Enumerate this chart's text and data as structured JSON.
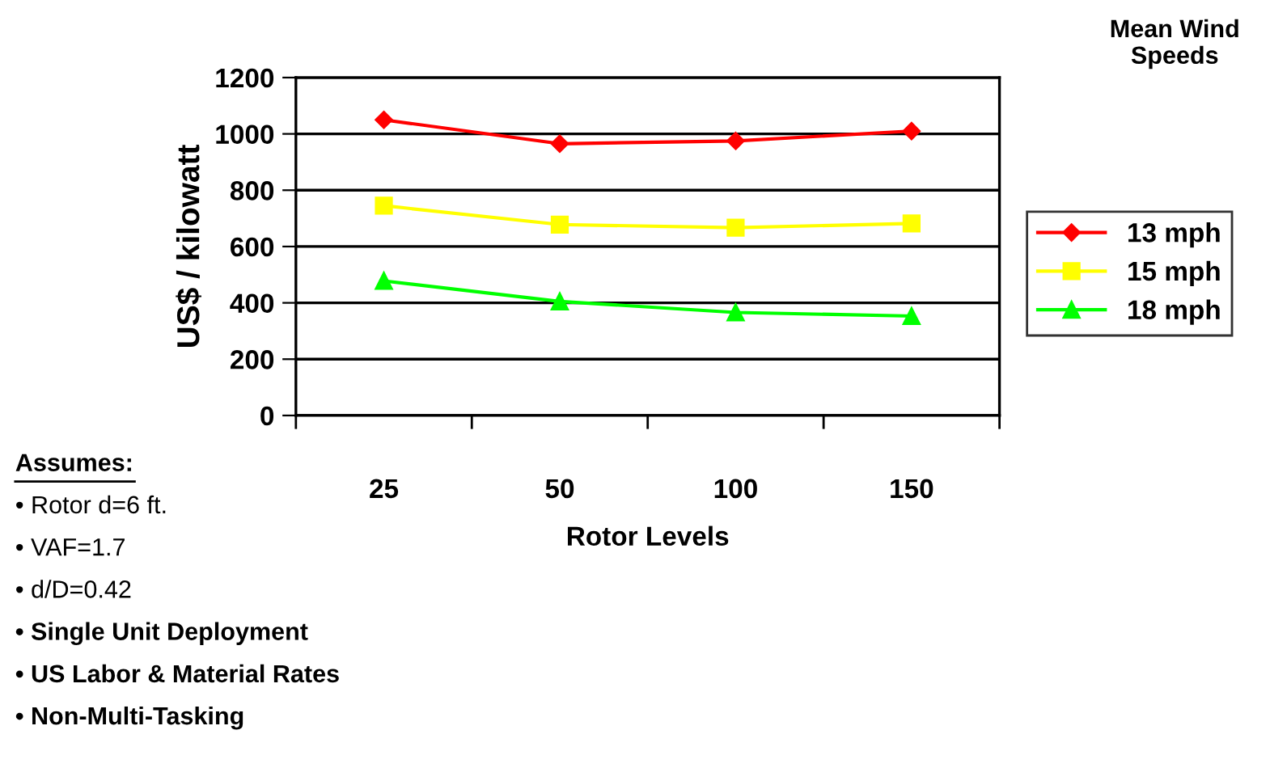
{
  "chart_data": {
    "type": "line",
    "categories": [
      "25",
      "50",
      "100",
      "150"
    ],
    "xlabel": "Rotor Levels",
    "ylabel": "US$ / kilowatt",
    "legend_title": "Mean Wind\nSpeeds",
    "ylim": [
      0,
      1200
    ],
    "yticks": [
      0,
      200,
      400,
      600,
      800,
      1000,
      1200
    ],
    "grid": "y",
    "legend": "right",
    "series": [
      {
        "name": "13 mph",
        "color": "#ff0000",
        "marker": "diamond",
        "values": [
          1050,
          965,
          975,
          1010
        ]
      },
      {
        "name": "15 mph",
        "color": "#ffff00",
        "marker": "square",
        "values": [
          745,
          678,
          667,
          682
        ]
      },
      {
        "name": "18 mph",
        "color": "#00ff00",
        "marker": "triangle",
        "values": [
          478,
          405,
          366,
          353
        ]
      }
    ],
    "annotations": [
      "Assumes:",
      "• Rotor d=6 ft.",
      "• VAF=1.7",
      "• d/D=0.42",
      "• Single Unit Deployment",
      "• US Labor & Material Rates",
      "• Non-Multi-Tasking"
    ]
  }
}
